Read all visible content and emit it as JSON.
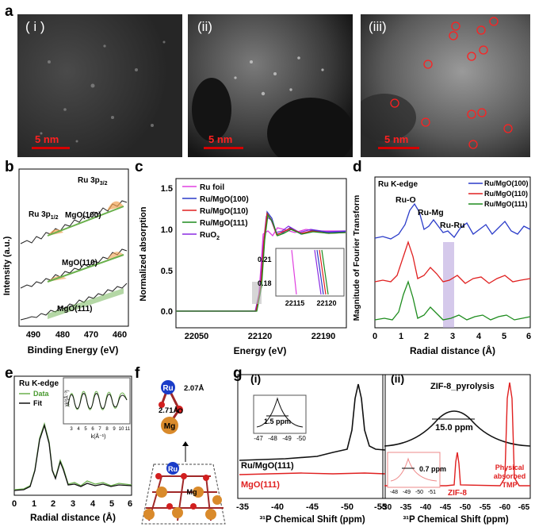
{
  "panel_labels": {
    "a": "a",
    "b": "b",
    "c": "c",
    "d": "d",
    "e": "e",
    "f": "f",
    "g": "g"
  },
  "panel_a": {
    "images": [
      {
        "label": "( i )",
        "scale": "5 nm"
      },
      {
        "label": "(ii)",
        "scale": "5 nm"
      },
      {
        "label": "(iii)",
        "scale": "5 nm"
      }
    ]
  },
  "panel_b": {
    "ylabel": "Intensity (a.u.)",
    "xlabel": "Binding Energy (eV)",
    "xticks": [
      "490",
      "480",
      "470",
      "460"
    ],
    "peak1": "Ru 3p3/2",
    "peak1_main": "Ru 3p",
    "peak1_sub": "3/2",
    "peak2_main": "Ru 3p",
    "peak2_sub": "1/2",
    "traces": [
      "MgO(100)",
      "MgO(110)",
      "MgO(111)"
    ]
  },
  "panel_c": {
    "ylabel": "Normalized absorption",
    "xlabel": "Energy (eV)",
    "xticks": [
      "22050",
      "22120",
      "22190"
    ],
    "yticks": [
      "0.0",
      "0.5",
      "1.0",
      "1.5"
    ],
    "legend": [
      {
        "name": "Ru foil",
        "color": "#e040e0"
      },
      {
        "name": "Ru/MgO(100)",
        "color": "#2b3cc9"
      },
      {
        "name": "Ru/MgO(110)",
        "color": "#e02020"
      },
      {
        "name": "Ru/MgO(111)",
        "color": "#1e8c1e"
      },
      {
        "name_main": "RuO",
        "name_sub": "2",
        "color": "#8a2be2"
      }
    ],
    "inset_yticks": [
      "0.21",
      "0.18"
    ],
    "inset_xticks": [
      "22115",
      "22120"
    ]
  },
  "panel_d": {
    "ylabel": "Magnitude of Fourier Transform",
    "xlabel": "Radial distance (Å)",
    "xticks": [
      "0",
      "1",
      "2",
      "3",
      "4",
      "5",
      "6"
    ],
    "title": "Ru K-edge",
    "annotations": [
      "Ru-O",
      "Ru-Mg",
      "Ru-Ru"
    ],
    "legend": [
      {
        "name": "Ru/MgO(100)",
        "color": "#2b3cc9"
      },
      {
        "name": "Ru/MgO(110)",
        "color": "#e02020"
      },
      {
        "name": "Ru/MgO(111)",
        "color": "#1e8c1e"
      }
    ]
  },
  "panel_e": {
    "title": "Ru K-edge",
    "xlabel": "Radial distance (Å)",
    "xticks": [
      "0",
      "1",
      "2",
      "3",
      "4",
      "5",
      "6"
    ],
    "legend": [
      {
        "name": "Data",
        "color": "#6ab04c"
      },
      {
        "name": "Fit",
        "color": "#111111"
      }
    ],
    "inset_xlabel": "k(Å⁻¹)",
    "inset_ylabel": "χk³(Å⁻³)",
    "inset_xticks": [
      "3",
      "4",
      "5",
      "6",
      "7",
      "8",
      "9",
      "10",
      "11"
    ]
  },
  "panel_f": {
    "atoms": [
      "Ru",
      "O",
      "Mg",
      "Ru",
      "O",
      "Mg"
    ],
    "distances": [
      "2.07Å",
      "2.71Å"
    ]
  },
  "panel_g": {
    "sub_i": "(i)",
    "sub_ii": "(ii)",
    "xlabel_i": "³¹P Chemical Shift (ppm)",
    "xlabel_ii": "³¹P Chemical Shift (ppm)",
    "xticks_i": [
      "-35",
      "-40",
      "-45",
      "-50",
      "-55"
    ],
    "xticks_ii": [
      "-30",
      "-35",
      "-40",
      "-45",
      "-50",
      "-55",
      "-60",
      "-65"
    ],
    "traces_i": [
      {
        "name": "Ru/MgO(111)",
        "color": "#111111"
      },
      {
        "name": "MgO(111)",
        "color": "#e02020"
      }
    ],
    "inset_i_width": "1.5 ppm",
    "inset_i_xticks": [
      "-47",
      "-48",
      "-49",
      "-50"
    ],
    "trace_ii_black": "ZIF-8_pyrolysis",
    "width_ii": "15.0 ppm",
    "inset_ii_width": "0.7 ppm",
    "inset_ii_xticks": [
      "-48",
      "-49",
      "-50",
      "-51"
    ],
    "zif8": "ZIF-8",
    "physical": [
      "Physical",
      "absorbed",
      "TMP"
    ]
  }
}
